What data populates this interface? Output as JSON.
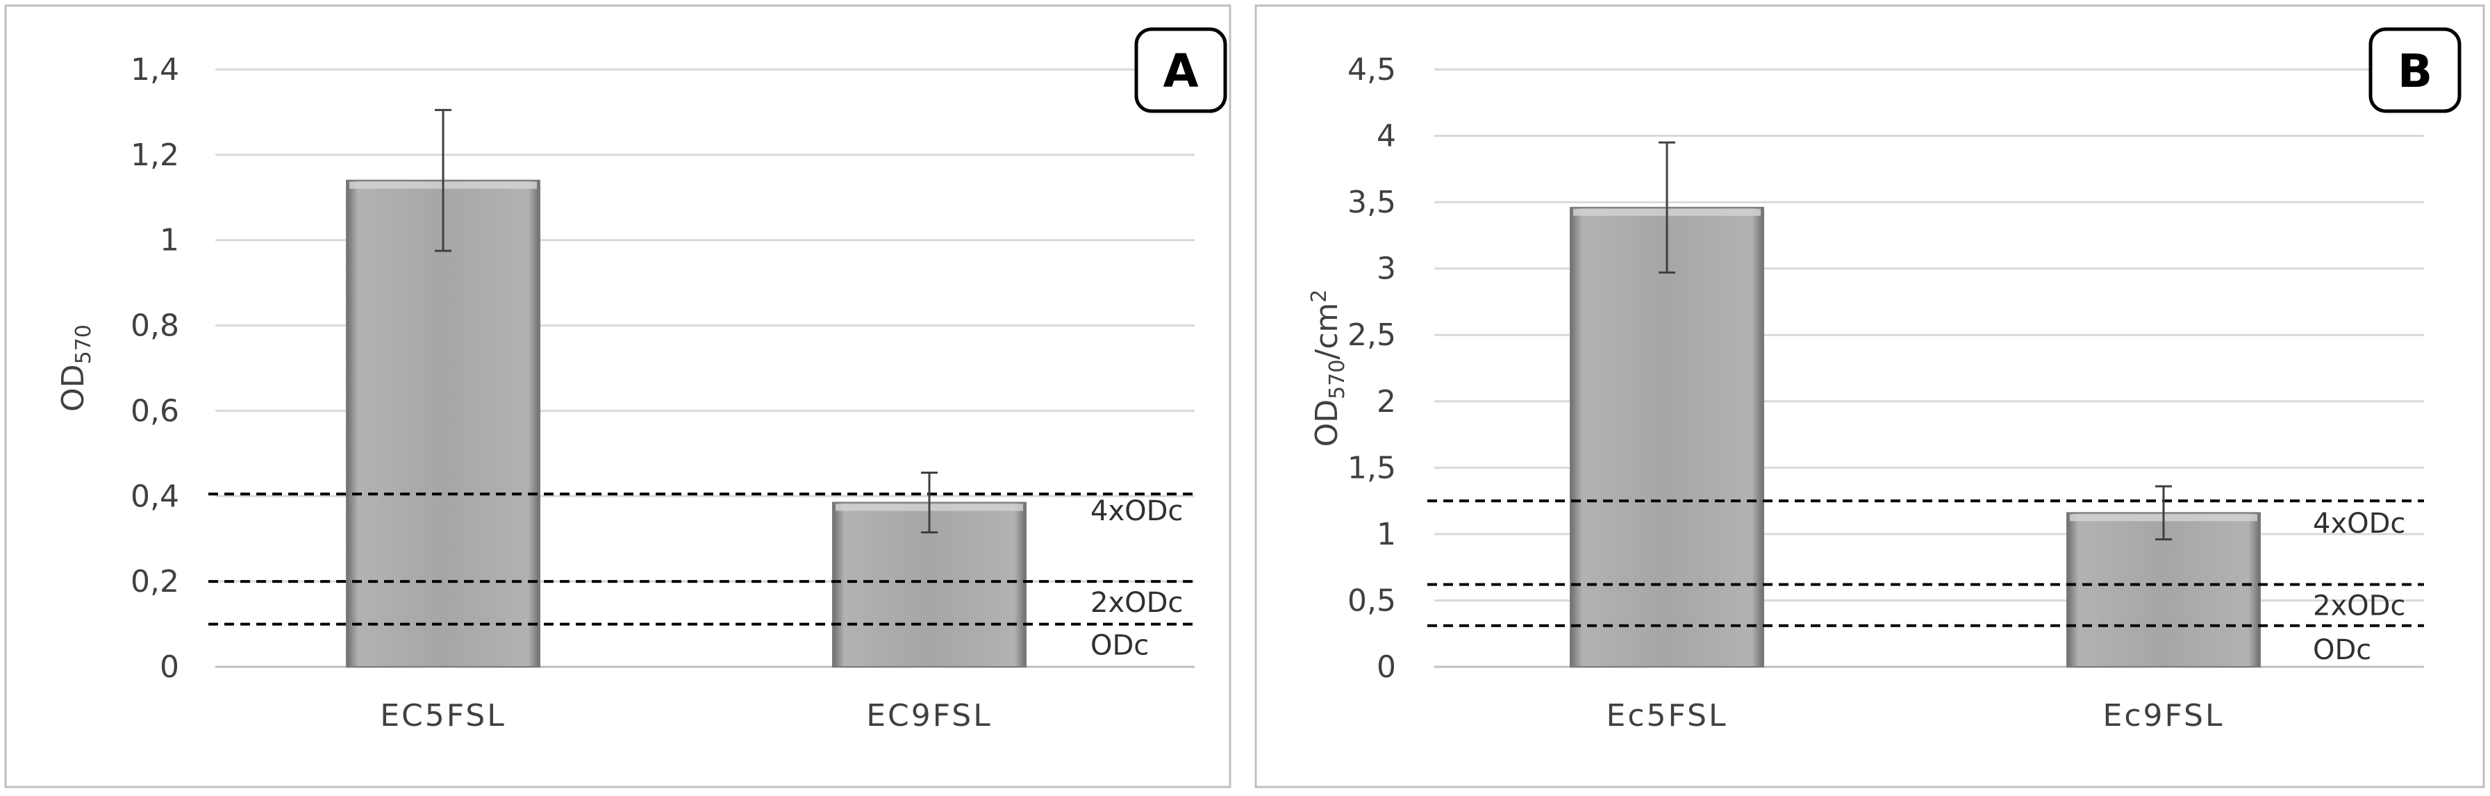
{
  "chart_data": [
    {
      "type": "bar",
      "panel_label": "A",
      "categories": [
        "EC5FSL",
        "EC9FSL"
      ],
      "values": [
        1.14,
        0.385
      ],
      "errors": [
        0.165,
        0.07
      ],
      "ylabel_main": "OD",
      "ylabel_sub": "570",
      "ylabel_suffix": "",
      "ylabel_sup": "",
      "ylim": [
        0,
        1.4
      ],
      "yticks": [
        0,
        0.2,
        0.4,
        0.6,
        0.8,
        1,
        1.2,
        1.4
      ],
      "ytick_labels": [
        "0",
        "0,2",
        "0,4",
        "0,6",
        "0,8",
        "1",
        "1,2",
        "1,4"
      ],
      "reference_lines": [
        {
          "label": "4xODc",
          "value": 0.405
        },
        {
          "label": "2xODc",
          "value": 0.2
        },
        {
          "label": "ODc",
          "value": 0.1
        }
      ],
      "grid": true,
      "colors": {
        "bar": "#a6a6a6",
        "grid": "#d9d9d9",
        "refline": "#000000"
      }
    },
    {
      "type": "bar",
      "panel_label": "B",
      "categories": [
        "Ec5FSL",
        "Ec9FSL"
      ],
      "values": [
        3.46,
        1.16
      ],
      "errors": [
        0.49,
        0.2
      ],
      "ylabel_main": "OD",
      "ylabel_sub": "570",
      "ylabel_suffix": "/cm",
      "ylabel_sup": "2",
      "ylim": [
        0,
        4.5
      ],
      "yticks": [
        0,
        0.5,
        1,
        1.5,
        2,
        2.5,
        3,
        3.5,
        4,
        4.5
      ],
      "ytick_labels": [
        "0",
        "0,5",
        "1",
        "1,5",
        "2",
        "2,5",
        "3",
        "3,5",
        "4",
        "4,5"
      ],
      "reference_lines": [
        {
          "label": "4xODc",
          "value": 1.25
        },
        {
          "label": "2xODc",
          "value": 0.62
        },
        {
          "label": "ODc",
          "value": 0.31
        }
      ],
      "grid": true,
      "colors": {
        "bar": "#a6a6a6",
        "grid": "#d9d9d9",
        "refline": "#000000"
      }
    }
  ]
}
